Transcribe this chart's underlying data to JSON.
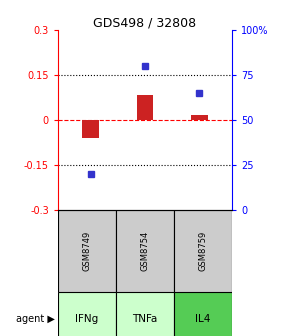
{
  "title": "GDS498 / 32808",
  "samples": [
    "GSM8749",
    "GSM8754",
    "GSM8759"
  ],
  "agents": [
    "IFNg",
    "TNFa",
    "IL4"
  ],
  "log_ratios": [
    -0.06,
    0.085,
    0.018
  ],
  "percentile_ranks": [
    20,
    80,
    65
  ],
  "ylim_left": [
    -0.3,
    0.3
  ],
  "ylim_right": [
    0,
    100
  ],
  "yticks_left": [
    -0.3,
    -0.15,
    0,
    0.15,
    0.3
  ],
  "yticks_right": [
    0,
    25,
    50,
    75,
    100
  ],
  "ytick_labels_right": [
    "0",
    "25",
    "50",
    "75",
    "100%"
  ],
  "hline_dotted": [
    0.15,
    -0.15
  ],
  "hline_dashed": [
    0
  ],
  "bar_color": "#cc2222",
  "dot_color": "#3333cc",
  "sample_bg_color": "#cccccc",
  "agent_colors": [
    "#ccffcc",
    "#ccffcc",
    "#55cc55"
  ],
  "agent_label": "agent"
}
